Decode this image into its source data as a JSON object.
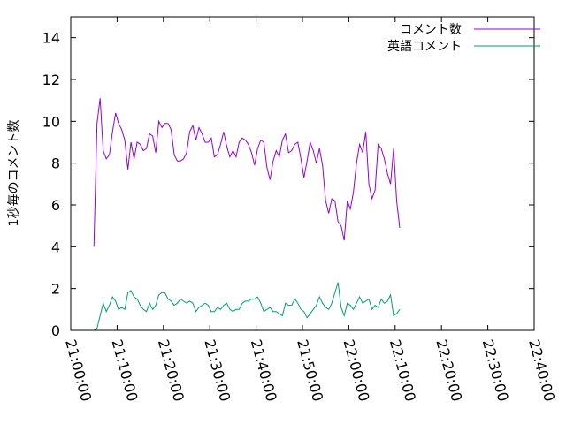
{
  "chart_data": {
    "type": "line",
    "xlabel": "",
    "ylabel": "1秒毎のコメント数",
    "ylim": [
      0,
      15
    ],
    "yticks": [
      0,
      2,
      4,
      6,
      8,
      10,
      12,
      14
    ],
    "xlim": [
      "21:00:00",
      "22:40:00"
    ],
    "xticks": [
      "21:00:00",
      "21:10:00",
      "21:20:00",
      "21:30:00",
      "21:40:00",
      "21:50:00",
      "22:00:00",
      "22:10:00",
      "22:20:00",
      "22:30:00",
      "22:40:00"
    ],
    "grid": false,
    "legend": "top-right",
    "series": [
      {
        "name": "コメント数",
        "color": "#9400d3",
        "points": [
          [
            "21:05:00",
            4.0
          ],
          [
            "21:05:40",
            9.9
          ],
          [
            "21:06:20",
            11.1
          ],
          [
            "21:07:00",
            8.6
          ],
          [
            "21:07:40",
            8.2
          ],
          [
            "21:08:20",
            8.4
          ],
          [
            "21:09:00",
            9.5
          ],
          [
            "21:09:40",
            10.4
          ],
          [
            "21:10:20",
            9.9
          ],
          [
            "21:11:00",
            9.6
          ],
          [
            "21:11:40",
            9.1
          ],
          [
            "21:12:20",
            7.7
          ],
          [
            "21:13:00",
            9.0
          ],
          [
            "21:13:40",
            8.2
          ],
          [
            "21:14:20",
            9.0
          ],
          [
            "21:15:00",
            8.9
          ],
          [
            "21:15:40",
            8.6
          ],
          [
            "21:16:20",
            8.7
          ],
          [
            "21:17:00",
            9.4
          ],
          [
            "21:17:40",
            9.3
          ],
          [
            "21:18:20",
            8.5
          ],
          [
            "21:19:00",
            10.0
          ],
          [
            "21:19:40",
            9.7
          ],
          [
            "21:20:20",
            9.9
          ],
          [
            "21:21:00",
            9.9
          ],
          [
            "21:21:40",
            9.6
          ],
          [
            "21:22:20",
            8.4
          ],
          [
            "21:23:00",
            8.1
          ],
          [
            "21:23:40",
            8.1
          ],
          [
            "21:24:20",
            8.2
          ],
          [
            "21:25:00",
            8.5
          ],
          [
            "21:25:40",
            9.5
          ],
          [
            "21:26:20",
            9.8
          ],
          [
            "21:27:00",
            9.1
          ],
          [
            "21:27:40",
            9.7
          ],
          [
            "21:28:20",
            9.4
          ],
          [
            "21:29:00",
            9.0
          ],
          [
            "21:29:40",
            9.0
          ],
          [
            "21:30:20",
            9.2
          ],
          [
            "21:31:00",
            8.3
          ],
          [
            "21:31:40",
            8.4
          ],
          [
            "21:32:20",
            8.9
          ],
          [
            "21:33:00",
            9.5
          ],
          [
            "21:33:40",
            8.8
          ],
          [
            "21:34:20",
            8.3
          ],
          [
            "21:35:00",
            8.6
          ],
          [
            "21:35:40",
            8.3
          ],
          [
            "21:36:20",
            9.0
          ],
          [
            "21:37:00",
            9.2
          ],
          [
            "21:37:40",
            9.1
          ],
          [
            "21:38:20",
            8.9
          ],
          [
            "21:39:00",
            8.5
          ],
          [
            "21:39:40",
            7.9
          ],
          [
            "21:40:20",
            8.7
          ],
          [
            "21:41:00",
            9.1
          ],
          [
            "21:41:40",
            9.0
          ],
          [
            "21:42:20",
            7.8
          ],
          [
            "21:43:00",
            7.2
          ],
          [
            "21:43:40",
            8.1
          ],
          [
            "21:44:20",
            8.6
          ],
          [
            "21:45:00",
            8.3
          ],
          [
            "21:45:40",
            9.1
          ],
          [
            "21:46:20",
            9.4
          ],
          [
            "21:47:00",
            8.5
          ],
          [
            "21:47:40",
            8.6
          ],
          [
            "21:48:20",
            8.9
          ],
          [
            "21:49:00",
            9.0
          ],
          [
            "21:49:40",
            8.2
          ],
          [
            "21:50:20",
            7.3
          ],
          [
            "21:51:00",
            8.1
          ],
          [
            "21:51:40",
            9.0
          ],
          [
            "21:52:20",
            8.6
          ],
          [
            "21:53:00",
            8.0
          ],
          [
            "21:53:40",
            8.7
          ],
          [
            "21:54:20",
            7.9
          ],
          [
            "21:55:00",
            6.2
          ],
          [
            "21:55:40",
            5.6
          ],
          [
            "21:56:20",
            6.3
          ],
          [
            "21:57:00",
            6.2
          ],
          [
            "21:57:40",
            5.2
          ],
          [
            "21:58:20",
            5.0
          ],
          [
            "21:59:00",
            4.3
          ],
          [
            "21:59:40",
            6.2
          ],
          [
            "22:00:20",
            5.8
          ],
          [
            "22:01:00",
            6.6
          ],
          [
            "22:01:40",
            8.0
          ],
          [
            "22:02:20",
            8.9
          ],
          [
            "22:03:00",
            8.5
          ],
          [
            "22:03:40",
            9.5
          ],
          [
            "22:04:20",
            7.0
          ],
          [
            "22:05:00",
            6.3
          ],
          [
            "22:05:40",
            6.7
          ],
          [
            "22:06:20",
            8.9
          ],
          [
            "22:07:00",
            8.7
          ],
          [
            "22:07:40",
            8.2
          ],
          [
            "22:08:20",
            7.5
          ],
          [
            "22:09:00",
            7.0
          ],
          [
            "22:09:40",
            8.7
          ],
          [
            "22:10:20",
            6.2
          ],
          [
            "22:11:00",
            4.9
          ]
        ]
      },
      {
        "name": "英語コメント",
        "color": "#009e73",
        "points": [
          [
            "21:05:00",
            0.0
          ],
          [
            "21:05:40",
            0.1
          ],
          [
            "21:06:20",
            0.7
          ],
          [
            "21:07:00",
            1.3
          ],
          [
            "21:07:40",
            0.9
          ],
          [
            "21:08:20",
            1.2
          ],
          [
            "21:09:00",
            1.6
          ],
          [
            "21:09:40",
            1.4
          ],
          [
            "21:10:20",
            1.0
          ],
          [
            "21:11:00",
            1.1
          ],
          [
            "21:11:40",
            1.0
          ],
          [
            "21:12:20",
            1.8
          ],
          [
            "21:13:00",
            1.9
          ],
          [
            "21:13:40",
            1.6
          ],
          [
            "21:14:20",
            1.5
          ],
          [
            "21:15:00",
            1.2
          ],
          [
            "21:15:40",
            1.0
          ],
          [
            "21:16:20",
            0.9
          ],
          [
            "21:17:00",
            1.3
          ],
          [
            "21:17:40",
            1.0
          ],
          [
            "21:18:20",
            1.2
          ],
          [
            "21:19:00",
            1.7
          ],
          [
            "21:19:40",
            1.8
          ],
          [
            "21:20:20",
            1.8
          ],
          [
            "21:21:00",
            1.5
          ],
          [
            "21:21:40",
            1.4
          ],
          [
            "21:22:20",
            1.2
          ],
          [
            "21:23:00",
            1.3
          ],
          [
            "21:23:40",
            1.5
          ],
          [
            "21:24:20",
            1.4
          ],
          [
            "21:25:00",
            1.3
          ],
          [
            "21:25:40",
            1.4
          ],
          [
            "21:26:20",
            1.3
          ],
          [
            "21:27:00",
            0.9
          ],
          [
            "21:27:40",
            1.1
          ],
          [
            "21:28:20",
            1.2
          ],
          [
            "21:29:00",
            1.3
          ],
          [
            "21:29:40",
            1.2
          ],
          [
            "21:30:20",
            0.9
          ],
          [
            "21:31:00",
            0.9
          ],
          [
            "21:31:40",
            1.1
          ],
          [
            "21:32:20",
            1.0
          ],
          [
            "21:33:00",
            1.2
          ],
          [
            "21:33:40",
            1.3
          ],
          [
            "21:34:20",
            1.0
          ],
          [
            "21:35:00",
            0.9
          ],
          [
            "21:35:40",
            1.0
          ],
          [
            "21:36:20",
            1.0
          ],
          [
            "21:37:00",
            1.3
          ],
          [
            "21:37:40",
            1.4
          ],
          [
            "21:38:20",
            1.4
          ],
          [
            "21:39:00",
            1.5
          ],
          [
            "21:39:40",
            1.5
          ],
          [
            "21:40:20",
            1.6
          ],
          [
            "21:41:00",
            1.3
          ],
          [
            "21:41:40",
            0.9
          ],
          [
            "21:42:20",
            1.0
          ],
          [
            "21:43:00",
            1.1
          ],
          [
            "21:43:40",
            0.9
          ],
          [
            "21:44:20",
            0.9
          ],
          [
            "21:45:00",
            0.8
          ],
          [
            "21:45:40",
            0.7
          ],
          [
            "21:46:20",
            1.3
          ],
          [
            "21:47:00",
            1.2
          ],
          [
            "21:47:40",
            1.2
          ],
          [
            "21:48:20",
            1.5
          ],
          [
            "21:49:00",
            1.3
          ],
          [
            "21:49:40",
            1.0
          ],
          [
            "21:50:20",
            0.9
          ],
          [
            "21:51:00",
            0.6
          ],
          [
            "21:51:40",
            0.8
          ],
          [
            "21:52:20",
            1.0
          ],
          [
            "21:53:00",
            1.2
          ],
          [
            "21:53:40",
            1.6
          ],
          [
            "21:54:20",
            1.3
          ],
          [
            "21:55:00",
            1.1
          ],
          [
            "21:55:40",
            1.0
          ],
          [
            "21:56:20",
            1.3
          ],
          [
            "21:57:00",
            1.8
          ],
          [
            "21:57:40",
            2.3
          ],
          [
            "21:58:20",
            1.1
          ],
          [
            "21:59:00",
            0.7
          ],
          [
            "21:59:40",
            1.3
          ],
          [
            "22:00:20",
            1.2
          ],
          [
            "22:01:00",
            1.0
          ],
          [
            "22:01:40",
            1.3
          ],
          [
            "22:02:20",
            1.6
          ],
          [
            "22:03:00",
            1.3
          ],
          [
            "22:03:40",
            1.4
          ],
          [
            "22:04:20",
            1.5
          ],
          [
            "22:05:00",
            1.0
          ],
          [
            "22:05:40",
            1.2
          ],
          [
            "22:06:20",
            1.1
          ],
          [
            "22:07:00",
            1.5
          ],
          [
            "22:07:40",
            1.3
          ],
          [
            "22:08:20",
            1.4
          ],
          [
            "22:09:00",
            1.7
          ],
          [
            "22:09:40",
            0.7
          ],
          [
            "22:10:20",
            0.8
          ],
          [
            "22:11:00",
            1.0
          ]
        ]
      }
    ]
  }
}
